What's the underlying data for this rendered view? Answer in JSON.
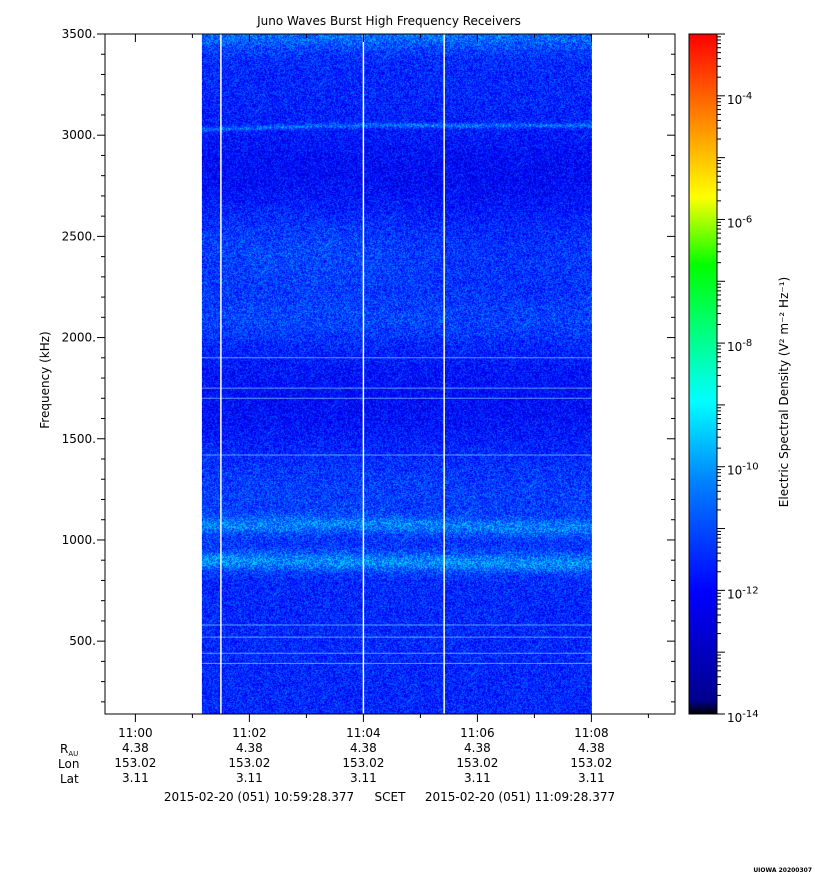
{
  "chart_data": {
    "type": "heatmap",
    "title": "Juno Waves Burst High Frequency Receivers",
    "ylabel": "Frequency (kHz)",
    "colorbar_label": "Electric Spectral Density (V² m⁻² Hz⁻¹)",
    "colorbar_scale": "log",
    "colorbar_range": [
      1e-14,
      0.001
    ],
    "colorbar_ticks": [
      {
        "value": -14,
        "label": "10",
        "exp": "-14"
      },
      {
        "value": -12,
        "label": "10",
        "exp": "-12"
      },
      {
        "value": -10,
        "label": "10",
        "exp": "-10"
      },
      {
        "value": -8,
        "label": "10",
        "exp": "-8"
      },
      {
        "value": -6,
        "label": "10",
        "exp": "-6"
      },
      {
        "value": -4,
        "label": "10",
        "exp": "-4"
      }
    ],
    "ylim": [
      140,
      3500
    ],
    "y_ticks": [
      {
        "value": 500,
        "label": "500."
      },
      {
        "value": 1000,
        "label": "1000."
      },
      {
        "value": 1500,
        "label": "1500."
      },
      {
        "value": 2000,
        "label": "2000."
      },
      {
        "value": 2500,
        "label": "2500."
      },
      {
        "value": 3000,
        "label": "3000."
      },
      {
        "value": 3500,
        "label": "3500."
      }
    ],
    "xlim": [
      "10:59:28",
      "11:09:28"
    ],
    "x_ticks": [
      {
        "value": "11:00",
        "r_au": "4.38",
        "lon": "153.02",
        "lat": "3.11"
      },
      {
        "value": "11:02",
        "r_au": "4.38",
        "lon": "153.02",
        "lat": "3.11"
      },
      {
        "value": "11:04",
        "r_au": "4.38",
        "lon": "153.02",
        "lat": "3.11"
      },
      {
        "value": "11:06",
        "r_au": "4.38",
        "lon": "153.02",
        "lat": "3.11"
      },
      {
        "value": "11:08",
        "r_au": "4.38",
        "lon": "153.02",
        "lat": "3.11"
      }
    ],
    "data_coverage": [
      "11:01:10",
      "11:08:00"
    ],
    "data_gaps": [
      "11:01:30",
      "11:04:00",
      "11:05:25"
    ],
    "features": [
      {
        "name": "narrowband emission",
        "freq_khz": 3030,
        "level_log10": -11.5
      },
      {
        "name": "emission band",
        "freq_khz": 2500,
        "level_log10": -11.8
      },
      {
        "name": "emission band",
        "freq_khz": 1070,
        "level_log10": -11.4
      },
      {
        "name": "emission band",
        "freq_khz": 900,
        "level_log10": -11.0
      }
    ],
    "grid": false
  },
  "ephemeris_labels": {
    "r": "R",
    "r_sub": "AU",
    "lon": "Lon",
    "lat": "Lat"
  },
  "time_range": {
    "start": "2015-02-20 (051) 10:59:28.377",
    "scet": "SCET",
    "end": "2015-02-20 (051) 11:09:28.377"
  },
  "footer_tag": "UIOWA 20200307",
  "colors": {
    "colormap": [
      "#000080",
      "#0000ff",
      "#00ffff",
      "#00ff00",
      "#ffff00",
      "#ff0000"
    ],
    "background": "#ffffff"
  }
}
